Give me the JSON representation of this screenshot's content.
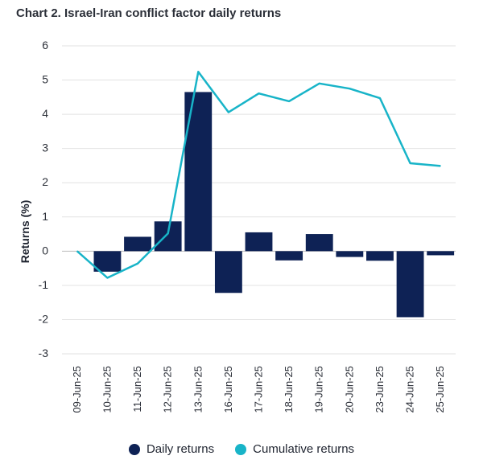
{
  "title": "Chart 2. Israel-Iran conflict factor daily returns",
  "colors": {
    "bars": "#0e2255",
    "line": "#18b4c8",
    "grid": "#e2e2e2",
    "zero": "#bdbdbd"
  },
  "chart_data": {
    "type": "bar+line",
    "title": "Chart 2. Israel-Iran conflict factor daily returns",
    "xlabel": "",
    "ylabel": "Returns (%)",
    "ylim": [
      -3,
      6
    ],
    "yticks": [
      "6",
      "5",
      "4",
      "3",
      "2",
      "1",
      "0",
      "-1",
      "-2",
      "-3"
    ],
    "grid": true,
    "legend_position": "bottom",
    "categories": [
      "09-Jun-25",
      "10-Jun-25",
      "11-Jun-25",
      "12-Jun-25",
      "13-Jun-25",
      "16-Jun-25",
      "17-Jun-25",
      "18-Jun-25",
      "19-Jun-25",
      "20-Jun-25",
      "23-Jun-25",
      "24-Jun-25",
      "25-Jun-25"
    ],
    "series": [
      {
        "name": "Daily returns",
        "type": "bar",
        "values": [
          0,
          -0.6,
          0.42,
          0.87,
          4.65,
          -1.22,
          0.55,
          -0.27,
          0.5,
          -0.17,
          -0.28,
          -1.93,
          -0.12
        ]
      },
      {
        "name": "Cumulative returns",
        "type": "line",
        "values": [
          0,
          -0.78,
          -0.36,
          0.52,
          5.24,
          4.06,
          4.61,
          4.38,
          4.9,
          4.75,
          4.47,
          2.57,
          2.49
        ]
      }
    ]
  }
}
